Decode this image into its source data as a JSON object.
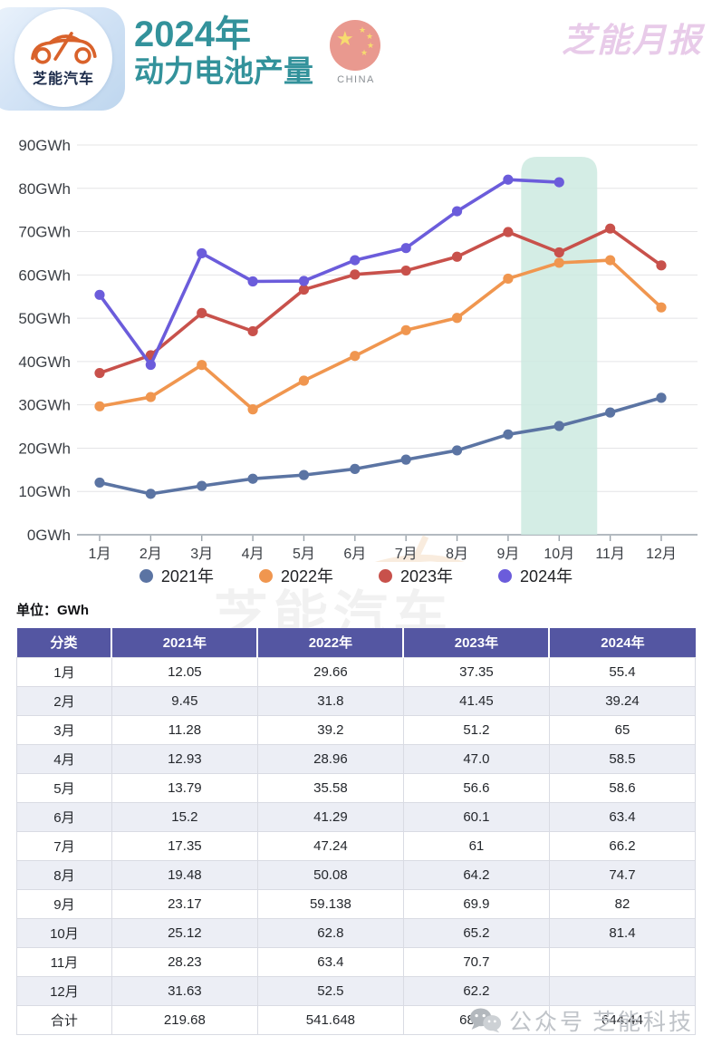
{
  "header": {
    "logo_text": "芝能汽车",
    "title_line1": "2024年",
    "title_line2": "动力电池产量",
    "flag_label": "CHINA",
    "report_badge": "芝能月报",
    "colors": {
      "title": "#33929b",
      "badge_text": "#e8cbe9",
      "logo_car": "#d9622b"
    }
  },
  "chart_data": {
    "type": "line",
    "x": [
      "1月",
      "2月",
      "3月",
      "4月",
      "5月",
      "6月",
      "7月",
      "8月",
      "9月",
      "10月",
      "11月",
      "12月"
    ],
    "series": [
      {
        "name": "2021年",
        "color": "#5b74a3",
        "values": [
          12.05,
          9.45,
          11.28,
          12.93,
          13.79,
          15.2,
          17.35,
          19.48,
          23.17,
          25.12,
          28.23,
          31.63
        ]
      },
      {
        "name": "2022年",
        "color": "#f0964f",
        "values": [
          29.66,
          31.8,
          39.2,
          28.96,
          35.58,
          41.29,
          47.24,
          50.08,
          59.138,
          62.8,
          63.4,
          52.5
        ]
      },
      {
        "name": "2023年",
        "color": "#c8514b",
        "values": [
          37.35,
          41.45,
          51.2,
          47.0,
          56.6,
          60.1,
          61,
          64.2,
          69.9,
          65.2,
          70.7,
          62.2
        ]
      },
      {
        "name": "2024年",
        "color": "#6b5cdb",
        "values": [
          55.4,
          39.24,
          65,
          58.5,
          58.6,
          63.4,
          66.2,
          74.7,
          82,
          81.4
        ]
      }
    ],
    "ylim": [
      0,
      90
    ],
    "ytick_step": 10,
    "ytick_suffix": "GWh",
    "grid": true,
    "legend_position": "bottom",
    "highlight": {
      "month_index": 9,
      "color": "#cdeae0"
    }
  },
  "unit_label": "单位：GWh",
  "table": {
    "headers": [
      "分类",
      "2021年",
      "2022年",
      "2023年",
      "2024年"
    ],
    "rows": [
      [
        "1月",
        "12.05",
        "29.66",
        "37.35",
        "55.4"
      ],
      [
        "2月",
        "9.45",
        "31.8",
        "41.45",
        "39.24"
      ],
      [
        "3月",
        "11.28",
        "39.2",
        "51.2",
        "65"
      ],
      [
        "4月",
        "12.93",
        "28.96",
        "47.0",
        "58.5"
      ],
      [
        "5月",
        "13.79",
        "35.58",
        "56.6",
        "58.6"
      ],
      [
        "6月",
        "15.2",
        "41.29",
        "60.1",
        "63.4"
      ],
      [
        "7月",
        "17.35",
        "47.24",
        "61",
        "66.2"
      ],
      [
        "8月",
        "19.48",
        "50.08",
        "64.2",
        "74.7"
      ],
      [
        "9月",
        "23.17",
        "59.138",
        "69.9",
        "82"
      ],
      [
        "10月",
        "25.12",
        "62.8",
        "65.2",
        "81.4"
      ],
      [
        "11月",
        "28.23",
        "63.4",
        "70.7",
        ""
      ],
      [
        "12月",
        "31.63",
        "52.5",
        "62.2",
        ""
      ],
      [
        "合计",
        "219.68",
        "541.648",
        "686.9",
        "644.44"
      ]
    ],
    "header_bg": "#5456a2"
  },
  "watermarks": {
    "chart_text": "芝能汽车",
    "footer_prefix": "公众号",
    "footer_name": "芝能科技"
  }
}
